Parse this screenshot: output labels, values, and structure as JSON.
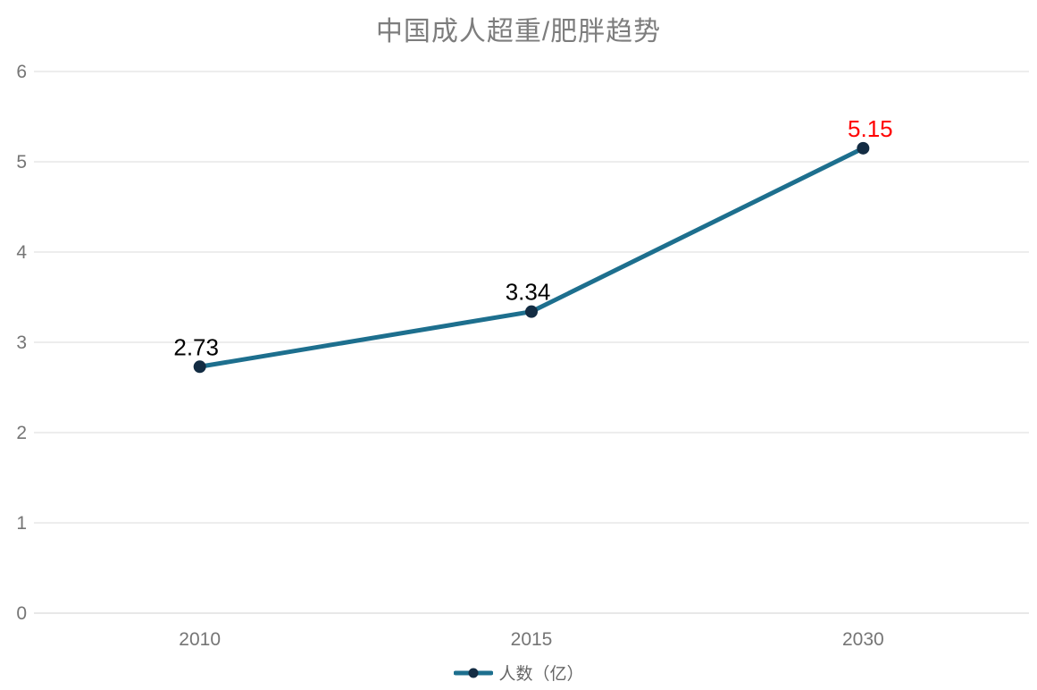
{
  "chart_data": {
    "type": "line",
    "title": "中国成人超重/肥胖趋势",
    "categories": [
      "2010",
      "2015",
      "2030"
    ],
    "series": [
      {
        "name": "人数（亿）",
        "values": [
          2.73,
          3.34,
          5.15
        ]
      }
    ],
    "data_labels": [
      "2.73",
      "3.34",
      "5.15"
    ],
    "highlight_last_label": true,
    "xlabel": "",
    "ylabel": "",
    "ylim": [
      0,
      6
    ],
    "y_ticks": [
      0,
      1,
      2,
      3,
      4,
      5,
      6
    ],
    "grid": true,
    "legend_position": "bottom",
    "colors": {
      "line": "#1d6f8e",
      "marker_fill": "#132c43",
      "data_label": "#000000",
      "highlight_label": "#ff0000",
      "axis_text": "#757575",
      "title_text": "#7d7d7d",
      "gridline": "#e2e2e2",
      "zero_line": "#d9d9d9"
    }
  },
  "layout_hints": {
    "note": "single line series, markers on points, value labels above points, last value highlighted red"
  }
}
